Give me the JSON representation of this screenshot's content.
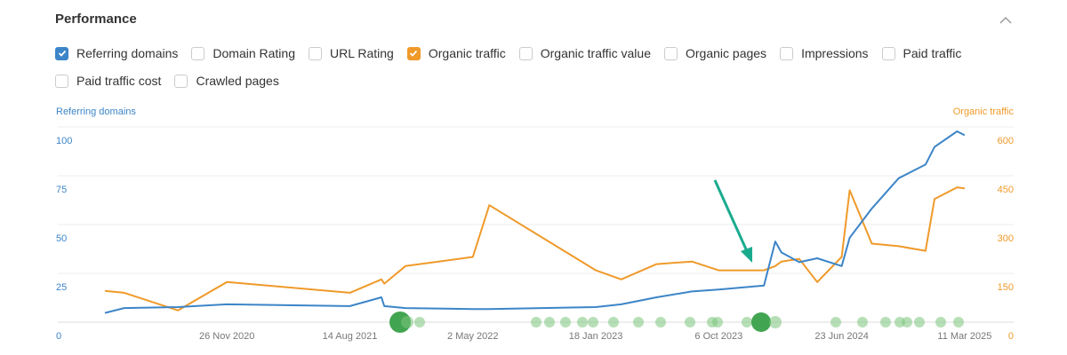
{
  "header": {
    "title": "Performance"
  },
  "checkboxes": [
    {
      "label": "Referring domains",
      "checked": true,
      "color": "#3c85c8"
    },
    {
      "label": "Domain Rating",
      "checked": false
    },
    {
      "label": "URL Rating",
      "checked": false
    },
    {
      "label": "Organic traffic",
      "checked": true,
      "color": "#ef9a2a"
    },
    {
      "label": "Organic traffic value",
      "checked": false
    },
    {
      "label": "Organic pages",
      "checked": false
    },
    {
      "label": "Impressions",
      "checked": false
    },
    {
      "label": "Paid traffic",
      "checked": false
    },
    {
      "label": "Paid traffic cost",
      "checked": false
    },
    {
      "label": "Crawled pages",
      "checked": false
    }
  ],
  "chart_data": {
    "type": "line",
    "x": [
      "12 Mar 2020",
      "22 Apr 2020",
      "14 Aug 2020",
      "26 Nov 2020",
      "14 Aug 2021",
      "20 Oct 2021",
      "26 Oct 2021",
      "10 Dec 2021",
      "2 May 2022",
      "6 Jun 2022",
      "18 Jan 2023",
      "13 Mar 2023",
      "27 May 2023",
      "10 Aug 2023",
      "6 Oct 2023",
      "10 Jan 2024",
      "3 Feb 2024",
      "16 Feb 2024",
      "25 Mar 2024",
      "2 May 2024",
      "23 Jun 2024",
      "10 Jul 2024",
      "26 Aug 2024",
      "22 Oct 2024",
      "18 Dec 2024",
      "6 Jan 2025",
      "23 Feb 2025",
      "11 Mar 2025"
    ],
    "series": [
      {
        "name": "Referring domains",
        "color": "#3c85c8",
        "values": [
          12,
          14.5,
          15,
          16.4,
          15.5,
          20,
          15.5,
          14.5,
          14,
          14,
          15,
          16.4,
          20,
          23,
          24,
          26,
          48.6,
          43,
          38,
          40,
          36,
          50.5,
          65.5,
          81,
          88,
          97,
          105,
          103
        ]
      },
      {
        "name": "Organic traffic",
        "color": "#ef9a2a",
        "axis": "y2",
        "values": [
          140,
          134,
          80,
          167,
          134,
          175,
          162,
          216,
          244,
          403,
          203,
          175,
          222,
          230,
          203,
          203,
          216,
          230,
          238,
          167,
          244,
          449,
          285,
          277,
          263,
          422,
          458,
          455
        ]
      }
    ],
    "xlim": [
      "3 Dec 2019",
      "23 Jun 2025"
    ],
    "xticks": [
      "26 Nov 2020",
      "14 Aug 2021",
      "2 May 2022",
      "18 Jan 2023",
      "6 Oct 2023",
      "23 Jun 2024",
      "11 Mar 2025"
    ],
    "ylim": [
      0,
      110
    ],
    "yticks": [
      0,
      25,
      50,
      75,
      100
    ],
    "y2lim": [
      0,
      660
    ],
    "y2ticks": [
      0,
      150,
      300,
      450,
      600
    ],
    "grid": true
  }
}
